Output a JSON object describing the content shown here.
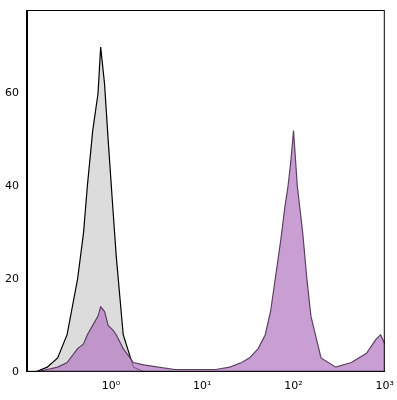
{
  "chart_data": {
    "type": "line",
    "x": [
      0.15,
      0.2,
      0.26,
      0.33,
      0.43,
      0.5,
      0.55,
      0.63,
      0.72,
      0.77,
      0.85,
      0.93,
      1.05,
      1.14,
      1.36,
      1.76,
      2.27,
      3.3,
      5,
      9.2,
      14,
      20,
      27,
      33,
      41,
      49,
      56,
      63,
      72,
      81,
      87,
      93,
      100,
      110,
      126,
      140,
      155,
      200,
      290,
      430,
      630,
      800,
      900,
      1000
    ],
    "series": [
      {
        "color": "#dcdcdc",
        "values": [
          0,
          1,
          3,
          8,
          20,
          30,
          40,
          52,
          60,
          70,
          62,
          50,
          35,
          25,
          8,
          1,
          0,
          0,
          0,
          0,
          0,
          0,
          0,
          0,
          0,
          0,
          0,
          0,
          0,
          0,
          0,
          0,
          0,
          0,
          0,
          0,
          0,
          0,
          0,
          0,
          0,
          0,
          0,
          0
        ]
      },
      {
        "color": "#b77fc4",
        "values": [
          0,
          0.5,
          1,
          2,
          5,
          6,
          8,
          10,
          12,
          14,
          13,
          10,
          9,
          8,
          5,
          2,
          1.5,
          1,
          0.5,
          0.5,
          0.5,
          1,
          2,
          3,
          5,
          8,
          13,
          20,
          28,
          36,
          40,
          45,
          52,
          40,
          30,
          20,
          12,
          3,
          1,
          2,
          4,
          7,
          8,
          6
        ]
      }
    ],
    "log": "x",
    "grid": false,
    "xlim": [
      0.12,
      1000
    ],
    "xticks": [
      {
        "value": 1,
        "label": "10⁰"
      },
      {
        "value": 10,
        "label": "10¹"
      },
      {
        "value": 100,
        "label": "10²"
      },
      {
        "value": 1000,
        "label": "10³"
      }
    ],
    "ylim": [
      0,
      78
    ],
    "yticks": [
      0,
      20,
      40,
      60
    ]
  }
}
